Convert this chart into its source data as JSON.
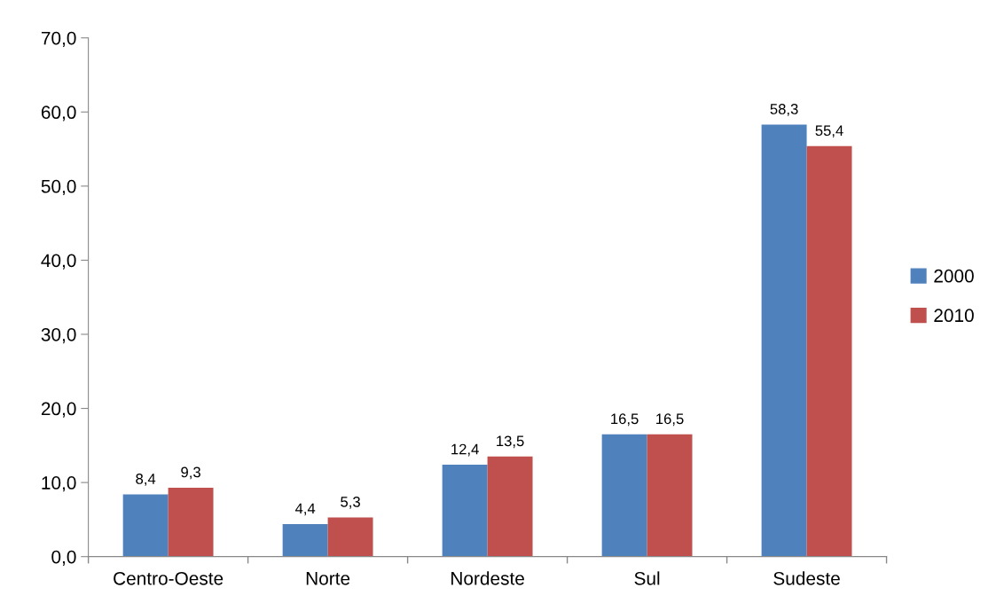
{
  "chart_data": {
    "type": "bar",
    "categories": [
      "Centro-Oeste",
      "Norte",
      "Nordeste",
      "Sul",
      "Sudeste"
    ],
    "series": [
      {
        "name": "2000",
        "color": "#4f81bd",
        "values": [
          8.4,
          4.4,
          12.4,
          16.5,
          58.3
        ],
        "value_labels": [
          "8,4",
          "4,4",
          "12,4",
          "16,5",
          "58,3"
        ]
      },
      {
        "name": "2010",
        "color": "#c0504d",
        "values": [
          9.3,
          5.3,
          13.5,
          16.5,
          55.4
        ],
        "value_labels": [
          "9,3",
          "5,3",
          "13,5",
          "16,5",
          "55,4"
        ]
      }
    ],
    "ylim": [
      0,
      70
    ],
    "yticks": [
      {
        "value": 0,
        "label": "0,0"
      },
      {
        "value": 10,
        "label": "10,0"
      },
      {
        "value": 20,
        "label": "20,0"
      },
      {
        "value": 30,
        "label": "30,0"
      },
      {
        "value": 40,
        "label": "40,0"
      },
      {
        "value": 50,
        "label": "50,0"
      },
      {
        "value": 60,
        "label": "60,0"
      },
      {
        "value": 70,
        "label": "70,0"
      }
    ],
    "grid": false,
    "legend": "right"
  }
}
